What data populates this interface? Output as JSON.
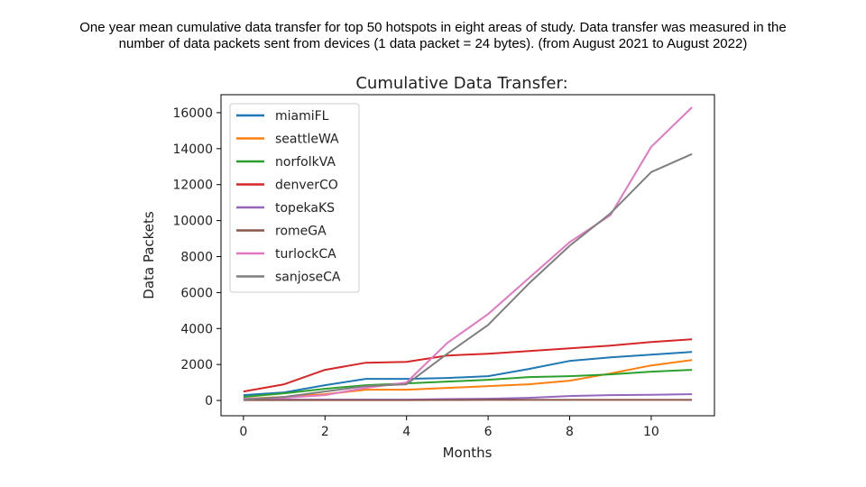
{
  "caption": {
    "line1": "One year mean cumulative data transfer for top 50 hotspots in eight areas of study. Data transfer was measured in the",
    "line2": "number of data packets sent from devices (1 data packet = 24 bytes). (from August 2021 to August 2022)"
  },
  "chart_data": {
    "type": "line",
    "title": "Cumulative Data Transfer:",
    "xlabel": "Months",
    "ylabel": "Data Packets",
    "xlim": [
      -0.55,
      11.55
    ],
    "ylim": [
      -850,
      17000
    ],
    "xticks": [
      0,
      2,
      4,
      6,
      8,
      10
    ],
    "yticks": [
      0,
      2000,
      4000,
      6000,
      8000,
      10000,
      12000,
      14000,
      16000
    ],
    "grid": false,
    "legend": "upper-left",
    "x": [
      0,
      1,
      2,
      3,
      4,
      5,
      6,
      7,
      8,
      9,
      10,
      11
    ],
    "series": [
      {
        "name": "miamiFL",
        "color": "#1f77b4",
        "values": [
          300,
          450,
          850,
          1200,
          1200,
          1250,
          1350,
          1750,
          2200,
          2400,
          2550,
          2700
        ]
      },
      {
        "name": "seattleWA",
        "color": "#ff7f0e",
        "values": [
          100,
          200,
          350,
          600,
          600,
          700,
          800,
          900,
          1100,
          1500,
          1950,
          2250
        ]
      },
      {
        "name": "norfolkVA",
        "color": "#2ca02c",
        "values": [
          200,
          400,
          650,
          850,
          950,
          1050,
          1150,
          1300,
          1350,
          1450,
          1600,
          1700
        ]
      },
      {
        "name": "denverCO",
        "color": "#d62728",
        "values": [
          500,
          900,
          1700,
          2100,
          2150,
          2500,
          2600,
          2750,
          2900,
          3050,
          3250,
          3400
        ]
      },
      {
        "name": "topekaKS",
        "color": "#9467bd",
        "values": [
          50,
          50,
          50,
          50,
          50,
          80,
          100,
          150,
          250,
          300,
          320,
          350
        ]
      },
      {
        "name": "romeGA",
        "color": "#8c564b",
        "values": [
          20,
          20,
          20,
          20,
          20,
          25,
          30,
          30,
          30,
          30,
          30,
          30
        ]
      },
      {
        "name": "turlockCA",
        "color": "#e377c2",
        "values": [
          100,
          150,
          300,
          700,
          1000,
          3200,
          4800,
          6800,
          8800,
          10300,
          14100,
          16300
        ]
      },
      {
        "name": "sanjoseCA",
        "color": "#7f7f7f",
        "values": [
          50,
          200,
          500,
          800,
          900,
          2600,
          4200,
          6500,
          8600,
          10400,
          12700,
          13700
        ]
      }
    ]
  }
}
